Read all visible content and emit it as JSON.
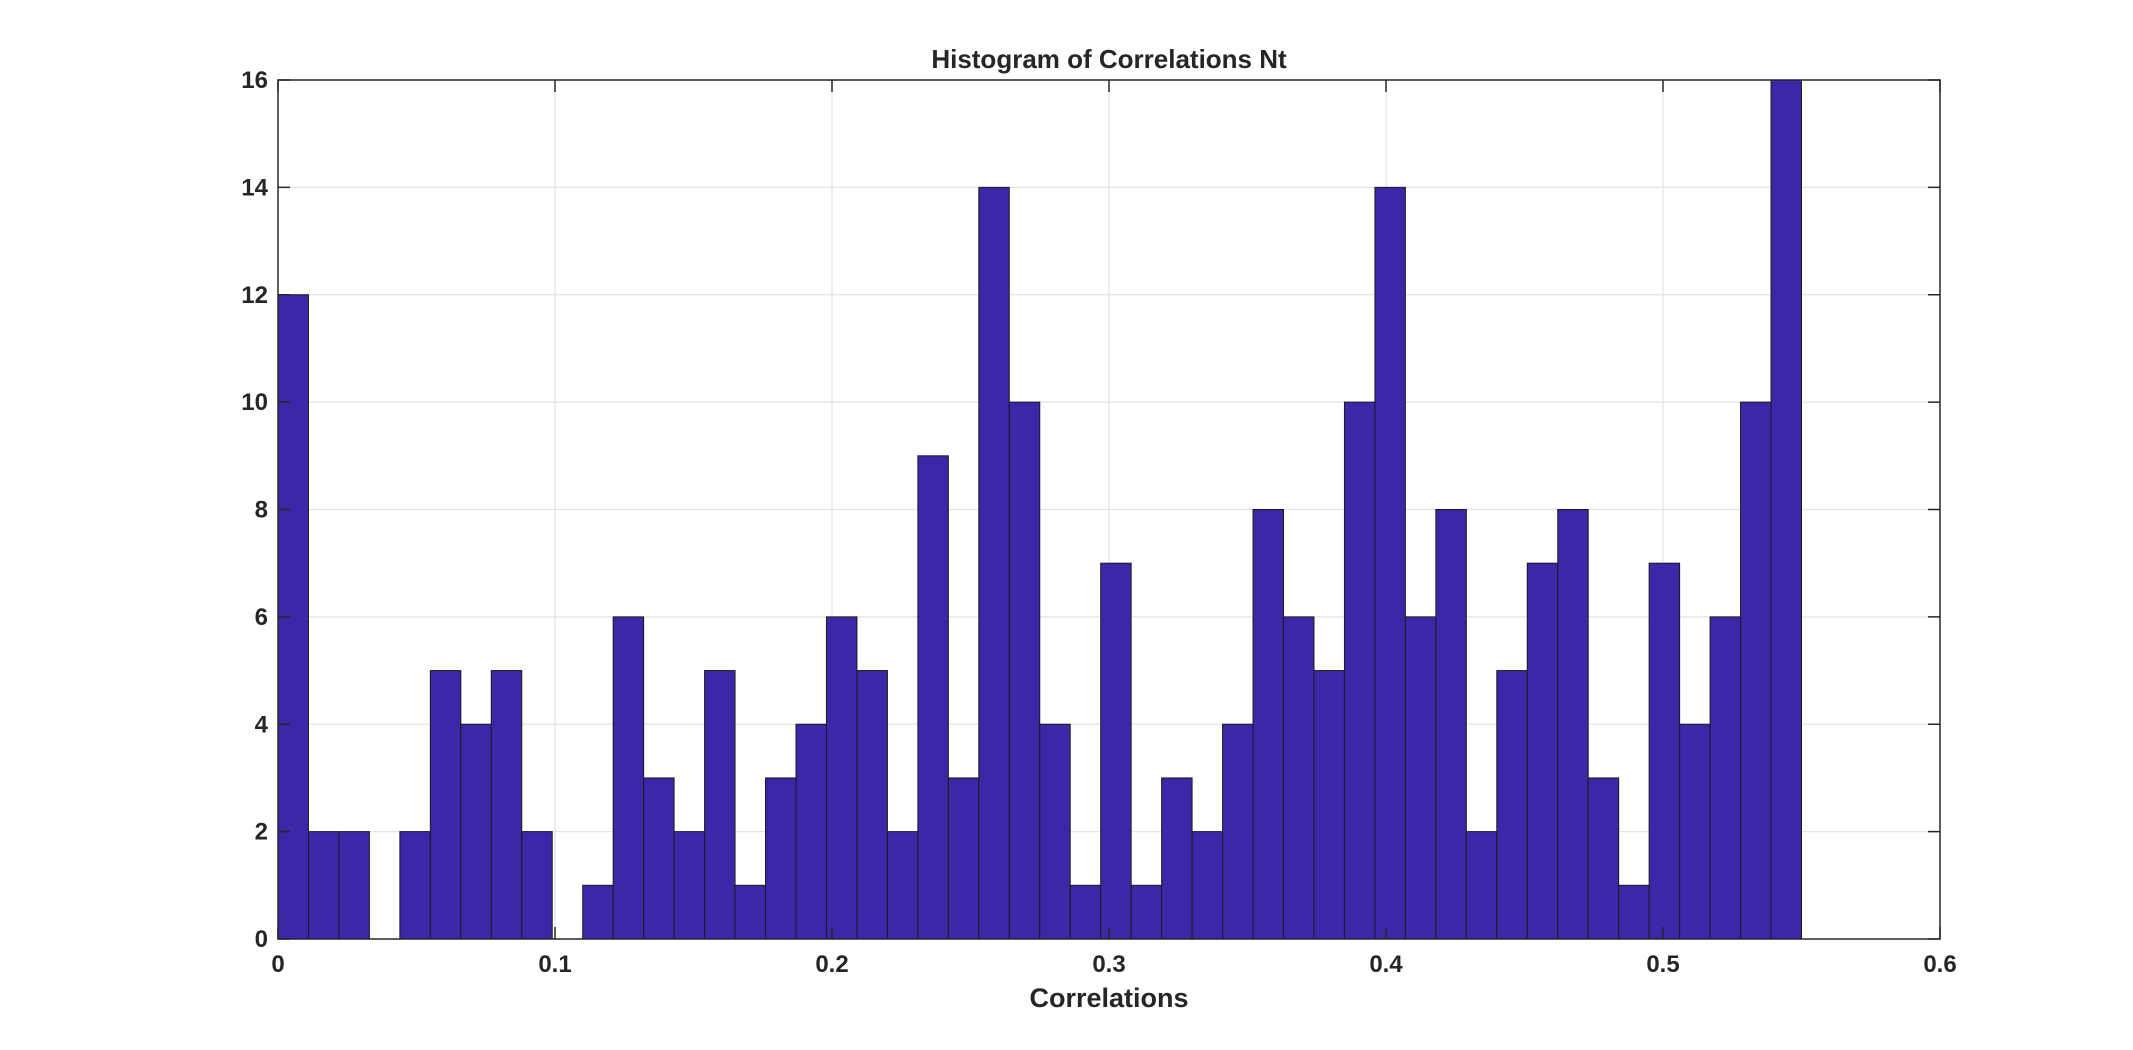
{
  "chart_data": {
    "type": "bar",
    "title": "Histogram of Correlations Nt",
    "xlabel": "Correlations",
    "ylabel": "",
    "xlim": [
      0,
      0.6
    ],
    "ylim": [
      0,
      16
    ],
    "xticks": [
      0,
      0.1,
      0.2,
      0.3,
      0.4,
      0.5,
      0.6
    ],
    "yticks": [
      0,
      2,
      4,
      6,
      8,
      10,
      12,
      14,
      16
    ],
    "grid": true,
    "bin_start": 0,
    "bin_width": 0.011,
    "values": [
      12,
      2,
      2,
      0,
      2,
      5,
      4,
      5,
      2,
      0,
      1,
      6,
      3,
      2,
      5,
      1,
      3,
      4,
      6,
      5,
      2,
      9,
      3,
      14,
      10,
      4,
      1,
      7,
      1,
      3,
      2,
      4,
      8,
      6,
      5,
      10,
      14,
      6,
      8,
      2,
      5,
      7,
      8,
      3,
      1,
      7,
      4,
      6,
      10,
      16
    ],
    "bar_color": "#3b27a8",
    "edge_color": "#1a1a1a"
  }
}
